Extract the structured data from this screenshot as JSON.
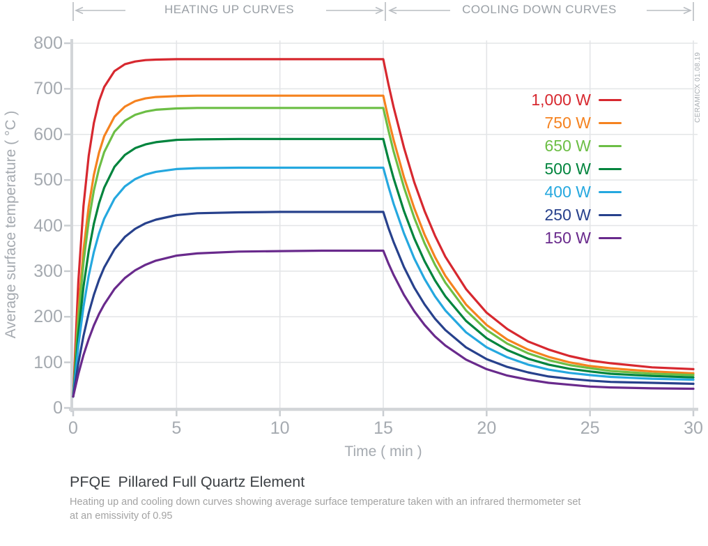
{
  "header": {
    "heating_label": "HEATING UP CURVES",
    "cooling_label": "COOLING DOWN CURVES"
  },
  "watermark": "CERAMICX 01.08.19",
  "footer": {
    "title_code": "PFQE",
    "title_name": "Pillared Full Quartz Element",
    "caption_line1": "Heating up and cooling down curves showing average surface temperature taken with an infrared thermometer set",
    "caption_line2": "at an emissivity of 0.95"
  },
  "chart_data": {
    "type": "line",
    "title": "PFQE Pillared Full Quartz Element heating up and cooling down curves",
    "xlabel": "Time ( min )",
    "ylabel": "Average surface temperature ( °C )",
    "xlim": [
      0,
      30
    ],
    "ylim": [
      0,
      800
    ],
    "x_ticks": [
      0,
      5,
      10,
      15,
      20,
      25,
      30
    ],
    "y_ticks": [
      0,
      100,
      200,
      300,
      400,
      500,
      600,
      700,
      800
    ],
    "grid": true,
    "legend_position": "upper right",
    "heating_interval_min": [
      0,
      15
    ],
    "cooling_interval_min": [
      15,
      30
    ],
    "x": [
      0,
      0.25,
      0.5,
      0.75,
      1,
      1.25,
      1.5,
      2,
      2.5,
      3,
      3.5,
      4,
      5,
      6,
      8,
      10,
      12,
      14,
      15,
      15.25,
      15.5,
      16,
      16.5,
      17,
      17.5,
      18,
      19,
      20,
      21,
      22,
      23,
      24,
      25,
      26,
      28,
      30
    ],
    "series": [
      {
        "name": "1,000 W",
        "power_w": 1000,
        "color": "#d7282f",
        "plateau_c": 765,
        "values": [
          25,
          277,
          443,
          553,
          625,
          673,
          704,
          739,
          754,
          760,
          763,
          764,
          765,
          765,
          765,
          765,
          765,
          765,
          765,
          710,
          660,
          571,
          495,
          432,
          378,
          332,
          261,
          209,
          173,
          146,
          128,
          114,
          104,
          98,
          89,
          85
        ]
      },
      {
        "name": "750 W",
        "power_w": 750,
        "color": "#f5821f",
        "plateau_c": 685,
        "values": [
          25,
          212,
          346,
          442,
          511,
          560,
          596,
          639,
          661,
          673,
          679,
          682,
          684,
          685,
          685,
          685,
          685,
          685,
          685,
          634,
          588,
          506,
          438,
          380,
          331,
          290,
          227,
          182,
          150,
          128,
          112,
          100,
          92,
          87,
          80,
          76
        ]
      },
      {
        "name": "650 W",
        "power_w": 650,
        "color": "#6cbe45",
        "plateau_c": 658,
        "values": [
          25,
          195,
          319,
          410,
          477,
          525,
          561,
          606,
          630,
          643,
          650,
          654,
          657,
          658,
          658,
          658,
          658,
          658,
          658,
          609,
          563,
          484,
          417,
          361,
          314,
          275,
          214,
          171,
          141,
          120,
          105,
          94,
          87,
          81,
          75,
          72
        ]
      },
      {
        "name": "500 W",
        "power_w": 500,
        "color": "#00843d",
        "plateau_c": 590,
        "values": [
          25,
          162,
          266,
          344,
          404,
          449,
          483,
          529,
          555,
          570,
          578,
          583,
          588,
          589,
          590,
          590,
          590,
          590,
          590,
          545,
          504,
          432,
          372,
          322,
          280,
          245,
          191,
          153,
          127,
          108,
          95,
          86,
          80,
          75,
          70,
          67
        ]
      },
      {
        "name": "400 W",
        "power_w": 400,
        "color": "#25a8df",
        "plateau_c": 527,
        "values": [
          25,
          136,
          222,
          290,
          342,
          383,
          415,
          459,
          486,
          502,
          512,
          518,
          524,
          526,
          527,
          527,
          527,
          527,
          527,
          486,
          448,
          383,
          328,
          283,
          245,
          214,
          166,
          133,
          111,
          95,
          84,
          77,
          72,
          68,
          64,
          62
        ]
      },
      {
        "name": "250 W",
        "power_w": 250,
        "color": "#27418c",
        "plateau_c": 430,
        "values": [
          25,
          98,
          158,
          208,
          248,
          281,
          308,
          348,
          375,
          393,
          405,
          413,
          423,
          427,
          429,
          430,
          430,
          430,
          430,
          395,
          364,
          309,
          264,
          227,
          196,
          171,
          133,
          107,
          90,
          78,
          69,
          64,
          60,
          57,
          55,
          53
        ]
      },
      {
        "name": "150 W",
        "power_w": 150,
        "color": "#692a8c",
        "plateau_c": 345,
        "values": [
          25,
          74,
          116,
          151,
          181,
          206,
          227,
          261,
          285,
          302,
          314,
          323,
          334,
          339,
          343,
          344,
          345,
          345,
          345,
          317,
          292,
          248,
          212,
          182,
          157,
          137,
          106,
          85,
          71,
          62,
          55,
          51,
          47,
          45,
          43,
          42
        ]
      }
    ]
  }
}
